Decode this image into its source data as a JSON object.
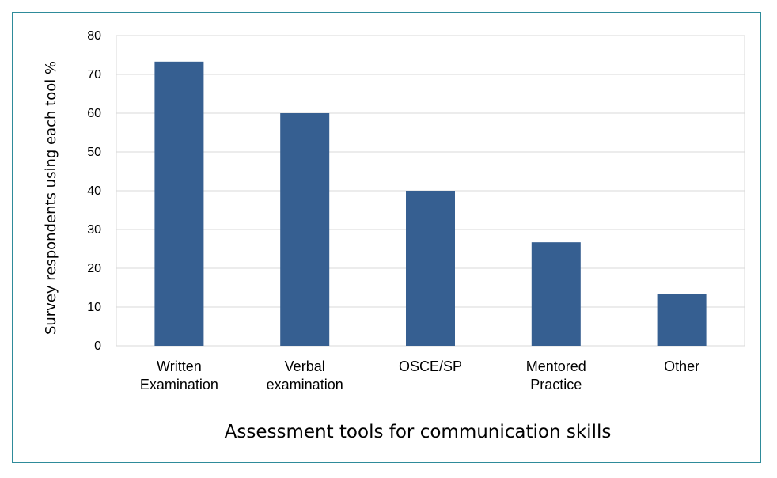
{
  "chart_data": {
    "type": "bar",
    "categories": [
      [
        "Written",
        "Examination"
      ],
      [
        "Verbal",
        "examination"
      ],
      [
        "OSCE/SP"
      ],
      [
        "Mentored",
        "Practice"
      ],
      [
        "Other"
      ]
    ],
    "values": [
      73.3,
      60,
      40,
      26.7,
      13.3
    ],
    "title": "",
    "xlabel": "Assessment tools for communication skills",
    "ylabel": "Survey respondents using each tool %",
    "ylim": [
      0,
      80
    ],
    "yticks": [
      "0",
      "10",
      "20",
      "30",
      "40",
      "50",
      "60",
      "70",
      "80"
    ],
    "grid": true,
    "legend": "none",
    "colors": {
      "bar": "#365f91",
      "grid": "#d9d9d9",
      "frame": "#2e8b9a"
    }
  }
}
